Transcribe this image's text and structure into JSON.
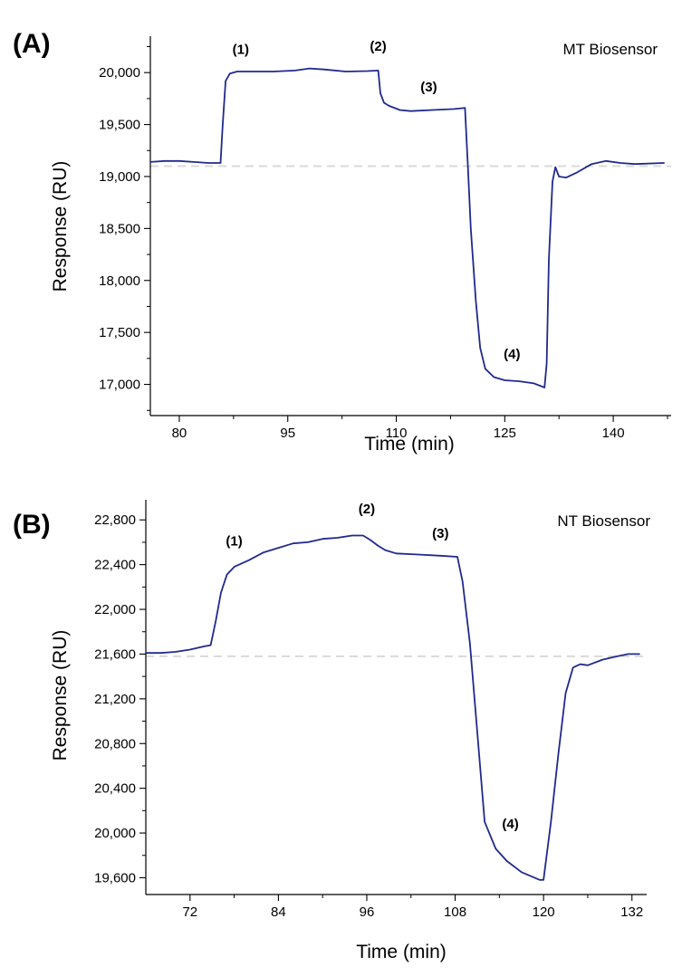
{
  "chart_data": [
    {
      "type": "line",
      "panel_label": "(A)",
      "title": "MT Biosensor",
      "xlabel": "Time (min)",
      "ylabel": "Response (RU)",
      "xlim": [
        76,
        148
      ],
      "ylim": [
        16700,
        20350
      ],
      "xticks": [
        80,
        95,
        110,
        125,
        140
      ],
      "xtick_labels": [
        "80",
        "95",
        "110",
        "125",
        "140"
      ],
      "yticks": [
        17000,
        17500,
        18000,
        18500,
        19000,
        19500,
        20000
      ],
      "ytick_labels": [
        "17,000",
        "17,500",
        "18,000",
        "18,500",
        "19,000",
        "19,500",
        "20,000"
      ],
      "baseline": 19100,
      "line_color": "#1f2a8c",
      "baseline_color": "#d9d9d9",
      "series": [
        {
          "name": "MT Biosensor",
          "x": [
            76,
            78,
            80,
            82,
            84,
            85.7,
            86.0,
            86.4,
            87.0,
            88.0,
            90,
            93,
            96,
            98,
            100,
            103,
            106,
            107.5,
            107.8,
            108.3,
            109,
            110.5,
            112,
            115,
            118,
            119.5,
            119.9,
            120.3,
            121.0,
            121.6,
            122.3,
            123.5,
            125,
            127,
            129,
            130.5,
            130.8,
            131.1,
            131.6,
            132.0,
            132.5,
            133.5,
            135,
            137,
            139,
            141,
            143,
            147
          ],
          "y": [
            19140,
            19150,
            19150,
            19140,
            19130,
            19130,
            19500,
            19920,
            19990,
            20010,
            20010,
            20010,
            20020,
            20040,
            20030,
            20010,
            20015,
            20020,
            19800,
            19710,
            19680,
            19640,
            19630,
            19640,
            19650,
            19660,
            19100,
            18500,
            17800,
            17350,
            17150,
            17070,
            17040,
            17030,
            17010,
            16970,
            17200,
            18200,
            18950,
            19090,
            19000,
            18990,
            19040,
            19120,
            19150,
            19130,
            19120,
            19130
          ]
        }
      ],
      "annotations": [
        {
          "text": "(1)",
          "x": 88.5,
          "y": 20180
        },
        {
          "text": "(2)",
          "x": 107.5,
          "y": 20210
        },
        {
          "text": "(3)",
          "x": 114.5,
          "y": 19820
        },
        {
          "text": "(4)",
          "x": 126,
          "y": 17250
        }
      ]
    },
    {
      "type": "line",
      "panel_label": "(B)",
      "title": "NT Biosensor",
      "xlabel": "Time (min)",
      "ylabel": "Response (RU)",
      "xlim": [
        66,
        134
      ],
      "ylim": [
        19450,
        22980
      ],
      "xticks": [
        72,
        84,
        96,
        108,
        120,
        132
      ],
      "xtick_labels": [
        "72",
        "84",
        "96",
        "108",
        "120",
        "132"
      ],
      "yticks": [
        19600,
        20000,
        20400,
        20800,
        21200,
        21600,
        22000,
        22400,
        22800
      ],
      "ytick_labels": [
        "19,600",
        "20,000",
        "20,400",
        "20,800",
        "21,200",
        "21,600",
        "22,000",
        "22,400",
        "22,800"
      ],
      "baseline": 21580,
      "line_color": "#1f2a8c",
      "baseline_color": "#d9d9d9",
      "series": [
        {
          "name": "NT Biosensor",
          "x": [
            66,
            68,
            70,
            72,
            74,
            74.8,
            75.5,
            76.2,
            77.0,
            78,
            80,
            82,
            84,
            86,
            88,
            90,
            92,
            94,
            95.5,
            96.5,
            97.5,
            98.5,
            100,
            103,
            106,
            108.3,
            109.0,
            110.0,
            111.0,
            112.0,
            113.5,
            115,
            117,
            119.5,
            120.0,
            121.0,
            122.0,
            123.0,
            124.0,
            125,
            126,
            128,
            130,
            131.5,
            133
          ],
          "y": [
            21610,
            21610,
            21620,
            21640,
            21670,
            21680,
            21900,
            22150,
            22310,
            22380,
            22440,
            22510,
            22550,
            22590,
            22600,
            22630,
            22640,
            22660,
            22660,
            22620,
            22570,
            22530,
            22500,
            22490,
            22480,
            22470,
            22250,
            21700,
            20900,
            20100,
            19860,
            19750,
            19650,
            19580,
            19580,
            20100,
            20700,
            21250,
            21480,
            21510,
            21500,
            21550,
            21580,
            21600,
            21600
          ]
        }
      ],
      "annotations": [
        {
          "text": "(1)",
          "x": 78,
          "y": 22570
        },
        {
          "text": "(2)",
          "x": 96,
          "y": 22860
        },
        {
          "text": "(3)",
          "x": 106,
          "y": 22640
        },
        {
          "text": "(4)",
          "x": 115.5,
          "y": 20040
        }
      ]
    }
  ]
}
